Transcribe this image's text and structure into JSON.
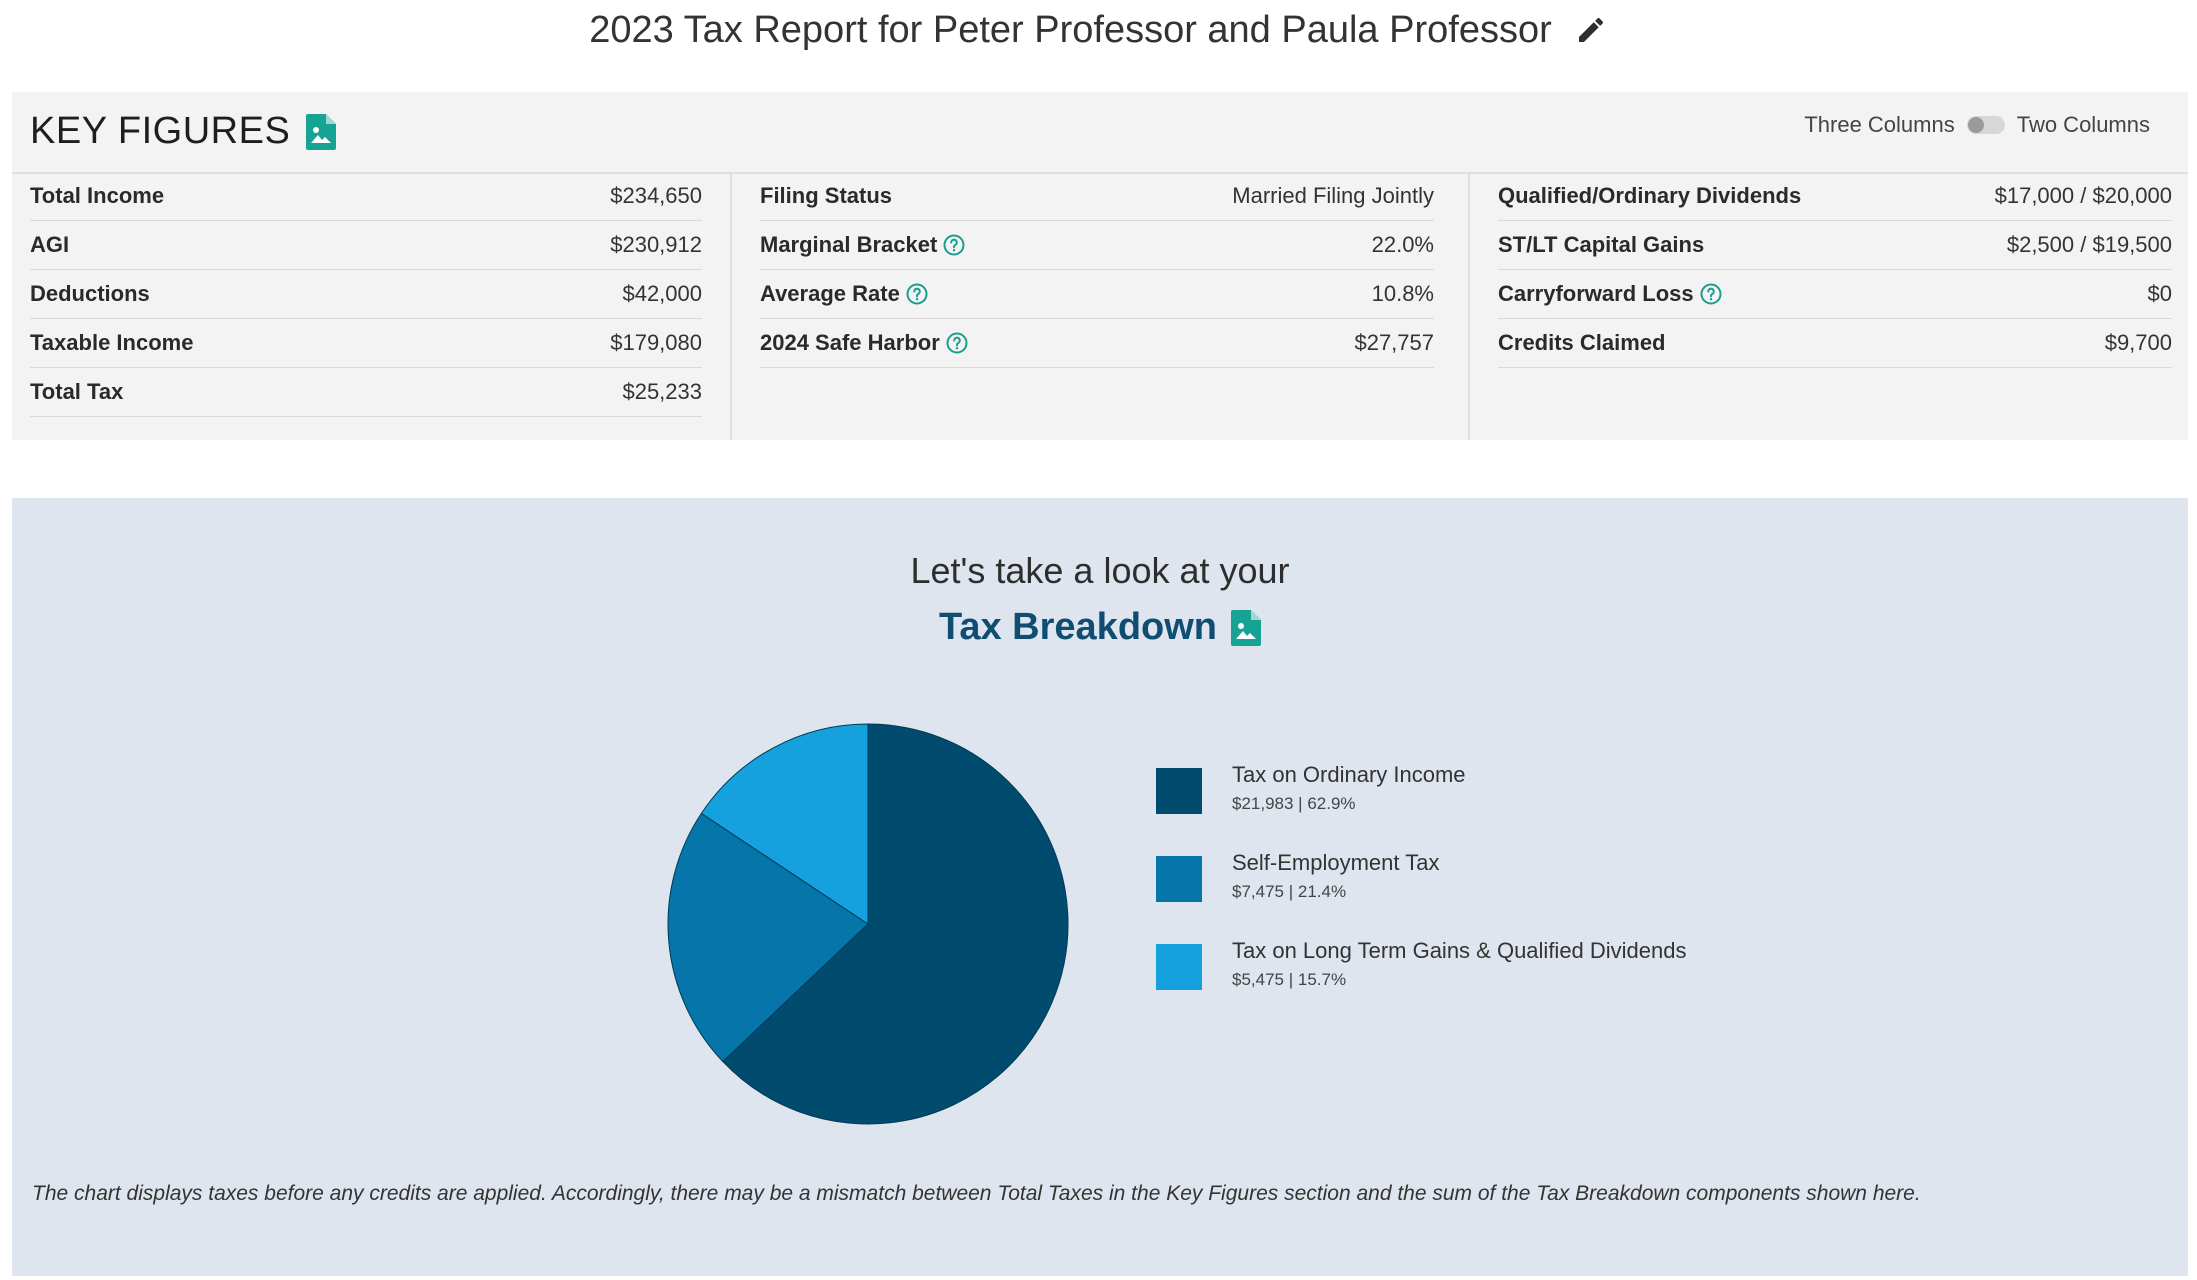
{
  "header": {
    "title": "2023 Tax Report for Peter Professor and Paula Professor",
    "edit_icon": "pencil-icon"
  },
  "key_figures": {
    "title": "KEY FIGURES",
    "export_icon": "file-image-icon",
    "toggle": {
      "left_label": "Three Columns",
      "right_label": "Two Columns",
      "state": "Three Columns"
    },
    "columns": [
      [
        {
          "label": "Total Income",
          "value": "$234,650"
        },
        {
          "label": "AGI",
          "value": "$230,912"
        },
        {
          "label": "Deductions",
          "value": "$42,000"
        },
        {
          "label": "Taxable Income",
          "value": "$179,080"
        },
        {
          "label": "Total Tax",
          "value": "$25,233"
        }
      ],
      [
        {
          "label": "Filing Status",
          "value": "Married Filing Jointly"
        },
        {
          "label": "Marginal Bracket",
          "value": "22.0%",
          "help": true
        },
        {
          "label": "Average Rate",
          "value": "10.8%",
          "help": true
        },
        {
          "label": "2024 Safe Harbor",
          "value": "$27,757",
          "help": true
        }
      ],
      [
        {
          "label": "Qualified/Ordinary Dividends",
          "value": "$17,000 / $20,000"
        },
        {
          "label": "ST/LT Capital Gains",
          "value": "$2,500 / $19,500"
        },
        {
          "label": "Carryforward Loss",
          "value": "$0",
          "help": true
        },
        {
          "label": "Credits Claimed",
          "value": "$9,700"
        }
      ]
    ]
  },
  "breakdown": {
    "intro": "Let's take a look at your",
    "title": "Tax Breakdown",
    "export_icon": "file-image-icon",
    "footnote": "The chart displays taxes before any credits are applied. Accordingly, there may be a mismatch between Total Taxes in the Key Figures section and the sum of the Tax Breakdown components shown here."
  },
  "colors": {
    "accent_teal": "#16a394",
    "help_teal": "#1a9d8f",
    "title_blue": "#0f4d73"
  },
  "chart_data": {
    "type": "pie",
    "slices": [
      {
        "name": "Tax on Ordinary Income",
        "value": 21983,
        "label": "$21,983 | 62.9%",
        "percent": 62.9,
        "color": "#004b6e"
      },
      {
        "name": "Self-Employment Tax",
        "value": 7475,
        "label": "$7,475 | 21.4%",
        "percent": 21.4,
        "color": "#0675a9"
      },
      {
        "name": "Tax on Long Term Gains & Qualified Dividends",
        "value": 5475,
        "label": "$5,475 | 15.7%",
        "percent": 15.7,
        "color": "#15a1dd"
      }
    ],
    "legend_position": "right"
  }
}
